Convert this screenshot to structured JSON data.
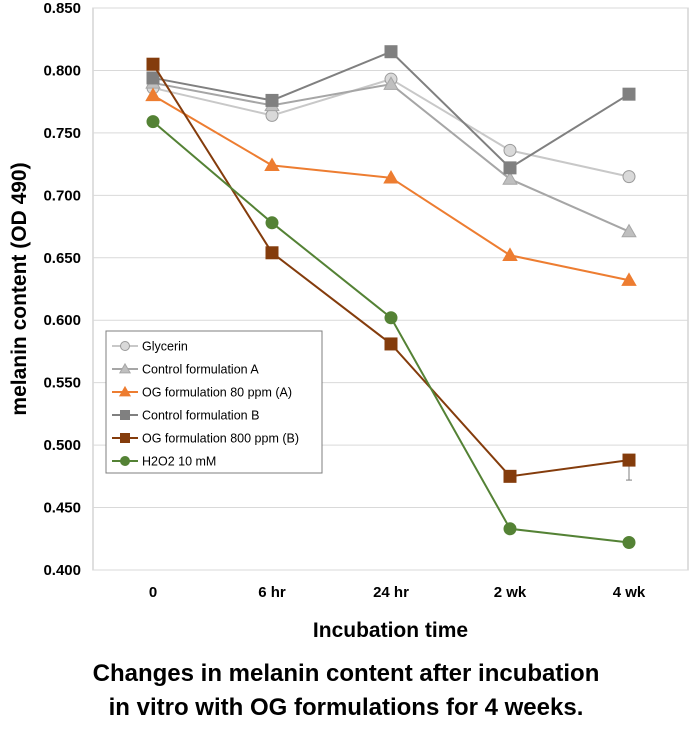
{
  "chart_data": {
    "type": "line",
    "categories": [
      "0",
      "6 hr",
      "24 hr",
      "2 wk",
      "4 wk"
    ],
    "xlabel": "Incubation time",
    "ylabel": "melanin content (OD 490)",
    "ylim": [
      0.4,
      0.85
    ],
    "yticks": [
      "0.400",
      "0.450",
      "0.500",
      "0.550",
      "0.600",
      "0.650",
      "0.700",
      "0.750",
      "0.800",
      "0.850"
    ],
    "grid": true,
    "legend_position": "left",
    "series": [
      {
        "name": "Glycerin",
        "marker": "circle",
        "color": "#c8c8c8",
        "marker_fill": "#d9d9d9",
        "values": [
          0.786,
          0.764,
          0.793,
          0.736,
          0.715
        ]
      },
      {
        "name": "Control formulation A",
        "marker": "triangle",
        "color": "#a6a6a6",
        "marker_fill": "#bfbfbf",
        "values": [
          0.79,
          0.772,
          0.789,
          0.713,
          0.671
        ]
      },
      {
        "name": "OG formulation 80 ppm (A)",
        "marker": "triangle",
        "color": "#ed7d31",
        "marker_fill": "#ed7d31",
        "values": [
          0.78,
          0.724,
          0.714,
          0.652,
          0.632
        ]
      },
      {
        "name": "Control formulation B",
        "marker": "square",
        "color": "#808080",
        "marker_fill": "#808080",
        "values": [
          0.794,
          0.776,
          0.815,
          0.722,
          0.781
        ]
      },
      {
        "name": "OG formulation 800 ppm (B)",
        "marker": "square",
        "color": "#843c0c",
        "marker_fill": "#843c0c",
        "values": [
          0.805,
          0.654,
          0.581,
          0.475,
          0.488
        ]
      },
      {
        "name": "H2O2 10 mM",
        "marker": "circle",
        "color": "#548235",
        "marker_fill": "#548235",
        "values": [
          0.759,
          0.678,
          0.602,
          0.433,
          0.422
        ]
      }
    ]
  },
  "caption": {
    "line1": "Changes in melanin content after incubation",
    "line2": "in vitro with OG formulations for 4 weeks."
  }
}
